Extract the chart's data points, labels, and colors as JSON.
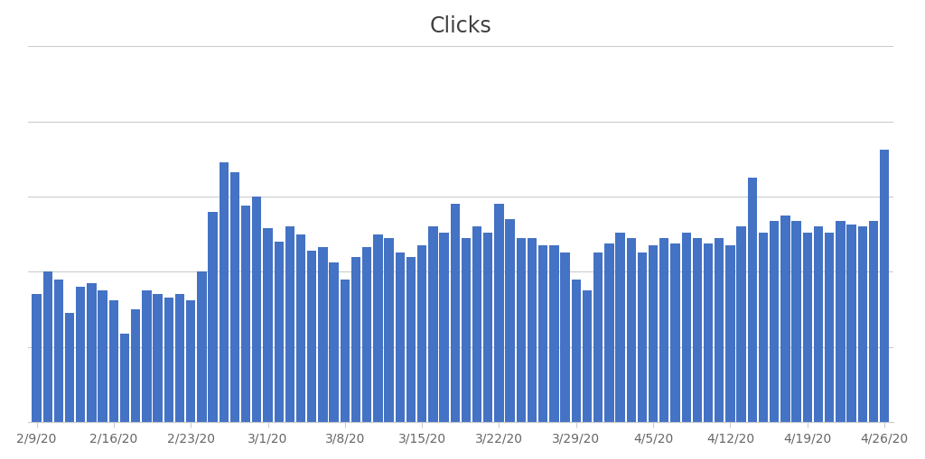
{
  "title": "Clicks",
  "bar_color": "#4472C4",
  "background_color": "#ffffff",
  "dates": [
    "2/9/20",
    "2/10/20",
    "2/11/20",
    "2/12/20",
    "2/13/20",
    "2/14/20",
    "2/15/20",
    "2/16/20",
    "2/17/20",
    "2/18/20",
    "2/19/20",
    "2/20/20",
    "2/21/20",
    "2/22/20",
    "2/23/20",
    "2/24/20",
    "2/25/20",
    "2/26/20",
    "2/27/20",
    "2/28/20",
    "2/29/20",
    "3/1/20",
    "3/2/20",
    "3/3/20",
    "3/4/20",
    "3/5/20",
    "3/6/20",
    "3/7/20",
    "3/8/20",
    "3/9/20",
    "3/10/20",
    "3/11/20",
    "3/12/20",
    "3/13/20",
    "3/14/20",
    "3/15/20",
    "3/16/20",
    "3/17/20",
    "3/18/20",
    "3/19/20",
    "3/20/20",
    "3/21/20",
    "3/22/20",
    "3/23/20",
    "3/24/20",
    "3/25/20",
    "3/26/20",
    "3/27/20",
    "3/28/20",
    "3/29/20",
    "3/30/20",
    "3/31/20",
    "4/1/20",
    "4/2/20",
    "4/3/20",
    "4/4/20",
    "4/5/20",
    "4/6/20",
    "4/7/20",
    "4/8/20",
    "4/9/20",
    "4/10/20",
    "4/11/20",
    "4/12/20",
    "4/13/20",
    "4/14/20",
    "4/15/20",
    "4/16/20",
    "4/17/20",
    "4/18/20",
    "4/19/20",
    "4/20/20",
    "4/21/20",
    "4/22/20",
    "4/23/20",
    "4/24/20",
    "4/25/20",
    "4/26/20"
  ],
  "values": [
    68,
    80,
    76,
    58,
    72,
    74,
    70,
    65,
    47,
    60,
    70,
    68,
    66,
    68,
    65,
    80,
    112,
    138,
    133,
    115,
    120,
    103,
    96,
    104,
    100,
    91,
    93,
    85,
    76,
    88,
    93,
    100,
    98,
    90,
    88,
    94,
    104,
    101,
    116,
    98,
    104,
    101,
    116,
    108,
    98,
    98,
    94,
    94,
    90,
    76,
    70,
    90,
    95,
    101,
    98,
    90,
    94,
    98,
    95,
    101,
    98,
    95,
    98,
    94,
    104,
    130,
    101,
    107,
    110,
    107,
    101,
    104,
    101,
    107,
    105,
    104,
    107,
    145
  ],
  "xtick_labels": [
    "2/9/20",
    "2/16/20",
    "2/23/20",
    "3/1/20",
    "3/8/20",
    "3/15/20",
    "3/22/20",
    "3/29/20",
    "4/5/20",
    "4/12/20",
    "4/19/20",
    "4/26/20"
  ],
  "xtick_positions": [
    0,
    7,
    14,
    21,
    28,
    35,
    42,
    49,
    56,
    63,
    70,
    77
  ],
  "ylim": [
    0,
    200
  ],
  "yticks": [
    0,
    40,
    80,
    120,
    160,
    200
  ],
  "grid_color": "#cccccc",
  "title_fontsize": 17,
  "tick_fontsize": 10,
  "tick_color": "#666666"
}
